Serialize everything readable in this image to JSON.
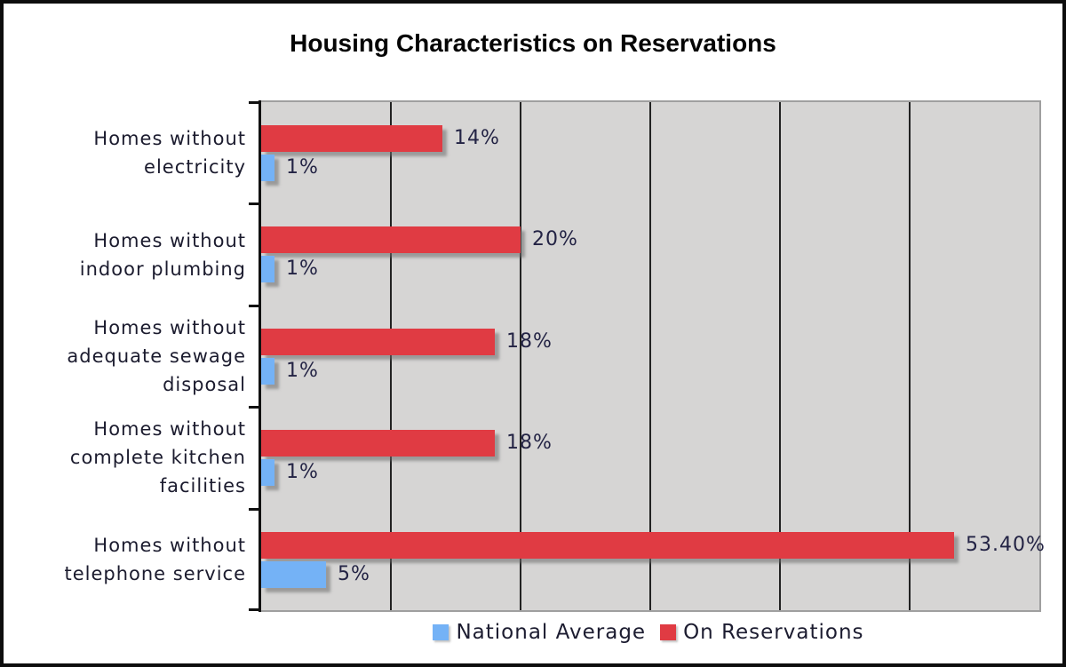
{
  "title": "Housing Characteristics on Reservations",
  "colors": {
    "on_reservations": "#e03b43",
    "national_average": "#74b2f6",
    "plot_background": "#d6d5d4",
    "gridline": "#222222",
    "axis": "#111111",
    "plot_border": "#9f9f9f",
    "label_text": "#232344",
    "frame_border": "#0d0d0d"
  },
  "chart_data": {
    "type": "bar",
    "orientation": "horizontal",
    "title": "Housing Characteristics on Reservations",
    "xlabel": "",
    "ylabel": "",
    "xlim": [
      0,
      60
    ],
    "gridline_interval": 10,
    "grid": true,
    "legend_position": "bottom",
    "categories": [
      "Homes without\nelectricity",
      "Homes without\nindoor plumbing",
      "Homes without\nadequate sewage\ndisposal",
      "Homes without\ncomplete kitchen\nfacilities",
      "Homes without\ntelephone service"
    ],
    "series": [
      {
        "name": "On Reservations",
        "color": "#e03b43",
        "values": [
          14,
          20,
          18,
          18,
          53.4
        ],
        "labels": [
          "14%",
          "20%",
          "18%",
          "18%",
          "53.40%"
        ]
      },
      {
        "name": "National Average",
        "color": "#74b2f6",
        "values": [
          1,
          1,
          1,
          1,
          5
        ],
        "labels": [
          "1%",
          "1%",
          "1%",
          "1%",
          "5%"
        ]
      }
    ],
    "legend": [
      {
        "label": "National Average",
        "color": "#74b2f6"
      },
      {
        "label": "On Reservations",
        "color": "#e03b43"
      }
    ]
  }
}
